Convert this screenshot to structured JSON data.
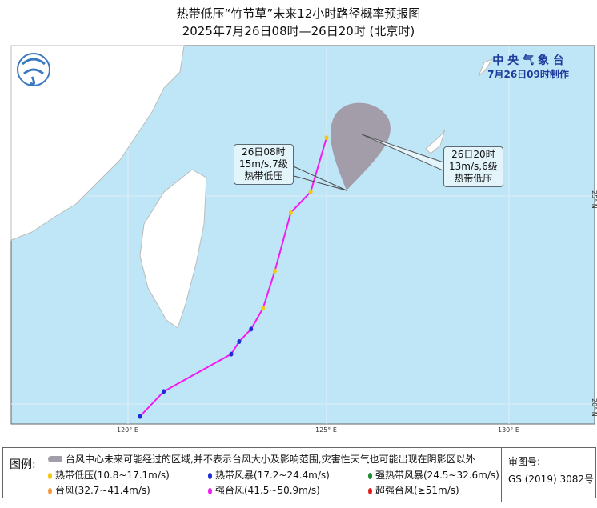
{
  "title": "热带低压“竹节草”未来12小时路径概率预报图",
  "subtitle": "2025年7月26日08时—26日20时 (北京时)",
  "agency": {
    "name": "中 央 气 象 台",
    "issued": "7月26日09时制作"
  },
  "axes": {
    "lon": [
      "120° E",
      "125° E",
      "130° E"
    ],
    "lat": [
      "25° N",
      "20° N"
    ]
  },
  "labels": [
    {
      "time": "26日08时",
      "wind": "15m/s,7级",
      "level": "热带低压"
    },
    {
      "time": "26日20时",
      "wind": "13m/s,6级",
      "level": "热带低压"
    }
  ],
  "track": [
    {
      "lon": 120.3,
      "lat": 19.7,
      "level": "热带风暴",
      "color": "#1e2bd8"
    },
    {
      "lon": 120.9,
      "lat": 20.3,
      "level": "热带风暴",
      "color": "#1e2bd8"
    },
    {
      "lon": 122.6,
      "lat": 21.2,
      "level": "热带风暴",
      "color": "#1e2bd8"
    },
    {
      "lon": 122.8,
      "lat": 21.5,
      "level": "热带风暴",
      "color": "#1e2bd8"
    },
    {
      "lon": 123.1,
      "lat": 21.8,
      "level": "热带风暴",
      "color": "#1e2bd8"
    },
    {
      "lon": 123.4,
      "lat": 22.3,
      "level": "热带低压",
      "color": "#f2c811"
    },
    {
      "lon": 123.7,
      "lat": 23.2,
      "level": "热带低压",
      "color": "#f2c811"
    },
    {
      "lon": 124.1,
      "lat": 24.6,
      "level": "热带低压",
      "color": "#f2c811"
    },
    {
      "lon": 124.6,
      "lat": 25.1,
      "level": "热带低压",
      "color": "#f2c811"
    },
    {
      "lon": 125.0,
      "lat": 26.4,
      "level": "热带低压",
      "color": "#f2c811"
    }
  ],
  "colors": {
    "sea": "#bfe6f7",
    "land": "#ffffff",
    "track": "#f01cf0",
    "cone": "#a39ca9"
  },
  "legend": {
    "key": "图例:",
    "cone_text": "台风中心未来可能经过的区域,并不表示台风大小及影响范围,灾害性天气也可能出现在阴影区以外",
    "items": [
      {
        "label": "热带低压(10.8~17.1m/s)",
        "color": "#f2c811"
      },
      {
        "label": "热带风暴(17.2~24.4m/s)",
        "color": "#1e2bd8"
      },
      {
        "label": "强热带风暴(24.5~32.6m/s)",
        "color": "#1f8a2a"
      },
      {
        "label": "台风(32.7~41.4m/s)",
        "color": "#f59a3a"
      },
      {
        "label": "强台风(41.5~50.9m/s)",
        "color": "#f01cf0"
      },
      {
        "label": "超强台风(≥51m/s)",
        "color": "#e51a1a"
      }
    ],
    "review_label": "审图号:",
    "review_no": "GS (2019) 3082号"
  }
}
